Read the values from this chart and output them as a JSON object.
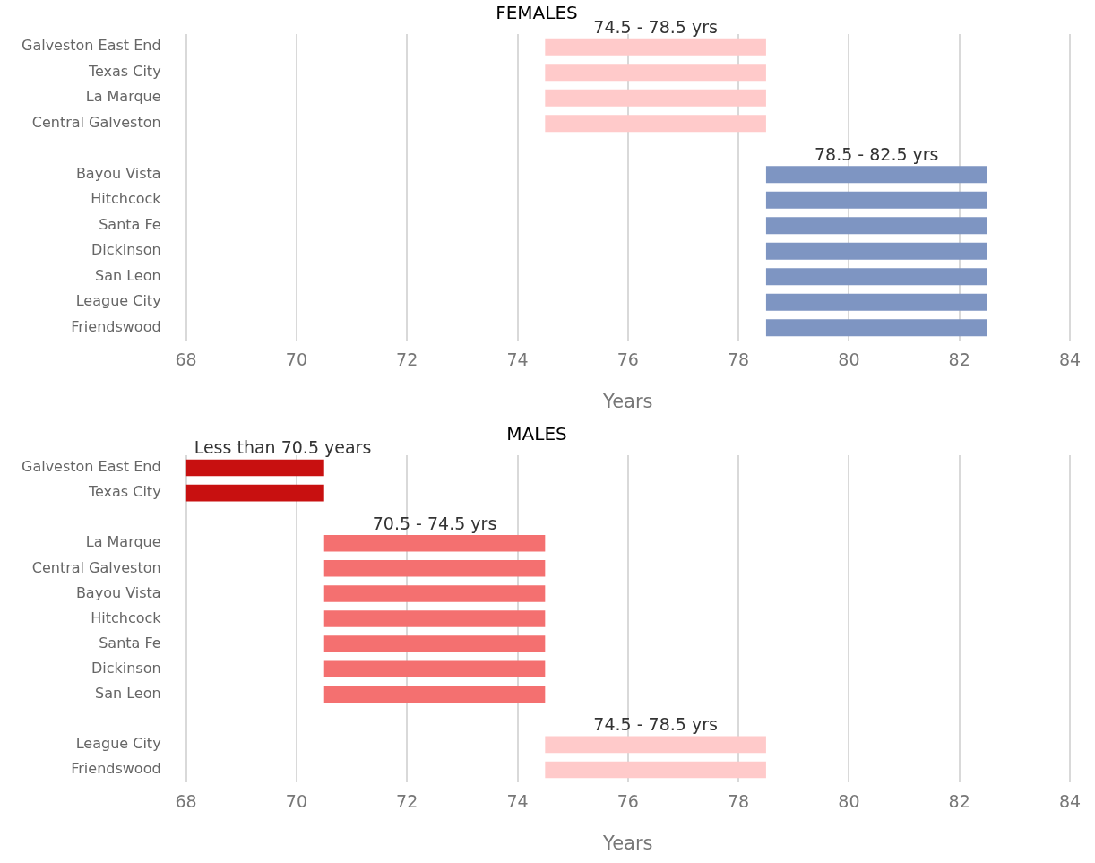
{
  "chart_data": [
    {
      "type": "bar",
      "orientation": "horizontal",
      "title": "FEMALES",
      "xlabel": "Years",
      "categories": [
        "Galveston East End",
        "Texas City",
        "La Marque",
        "Central Galveston",
        null,
        "Bayou Vista",
        "Hitchcock",
        "Santa Fe",
        "Dickinson",
        "San Leon",
        "League City",
        "Friendswood"
      ],
      "base": [
        74.5,
        74.5,
        74.5,
        74.5,
        null,
        78.5,
        78.5,
        78.5,
        78.5,
        78.5,
        78.5,
        78.5
      ],
      "values": [
        4,
        4,
        4,
        4,
        null,
        4,
        4,
        4,
        4,
        4,
        4,
        4
      ],
      "colors": [
        "#ffcaca",
        "#ffcaca",
        "#ffcaca",
        "#ffcaca",
        "#ffffff",
        "#7e95c2",
        "#7e95c2",
        "#7e95c2",
        "#7e95c2",
        "#7e95c2",
        "#7e95c2",
        "#7e95c2"
      ],
      "xlim": [
        68,
        84
      ],
      "xticks": [
        68,
        70,
        72,
        74,
        76,
        78,
        80,
        82,
        84
      ],
      "grid": "x",
      "legend": false,
      "annotations": [
        {
          "text": "74.5 - 78.5 yrs",
          "x": 76.5,
          "y": "Galveston East End"
        },
        {
          "text": "78.5 - 82.5 yrs",
          "x": 80.5,
          "y": "Bayou Vista"
        }
      ]
    },
    {
      "type": "bar",
      "orientation": "horizontal",
      "title": "MALES",
      "xlabel": "Years",
      "categories": [
        "Galveston East End",
        "Texas City",
        null,
        "La Marque",
        "Central Galveston",
        "Bayou Vista",
        "Hitchcock",
        "Santa Fe",
        "Dickinson",
        "San Leon",
        null,
        "League City",
        "Friendswood"
      ],
      "base": [
        68,
        68,
        null,
        70.5,
        70.5,
        70.5,
        70.5,
        70.5,
        70.5,
        70.5,
        null,
        74.5,
        74.5
      ],
      "values": [
        2.5,
        2.5,
        null,
        4,
        4,
        4,
        4,
        4,
        4,
        4,
        null,
        4,
        4
      ],
      "colors": [
        "#c81010",
        "#c81010",
        "#ffffff",
        "#f47070",
        "#f47070",
        "#f47070",
        "#f47070",
        "#f47070",
        "#f47070",
        "#f47070",
        "#ffffff",
        "#ffcaca",
        "#ffcaca"
      ],
      "xlim": [
        68,
        84
      ],
      "xticks": [
        68,
        70,
        72,
        74,
        76,
        78,
        80,
        82,
        84
      ],
      "grid": "x",
      "legend": false,
      "annotations": [
        {
          "text": "Less than 70.5 years",
          "x": 69.75,
          "y": "Galveston East End"
        },
        {
          "text": "70.5 - 74.5 yrs",
          "x": 72.5,
          "y": "La Marque"
        },
        {
          "text": "74.5 - 78.5 yrs",
          "x": 76.5,
          "y": "League City"
        }
      ]
    }
  ]
}
